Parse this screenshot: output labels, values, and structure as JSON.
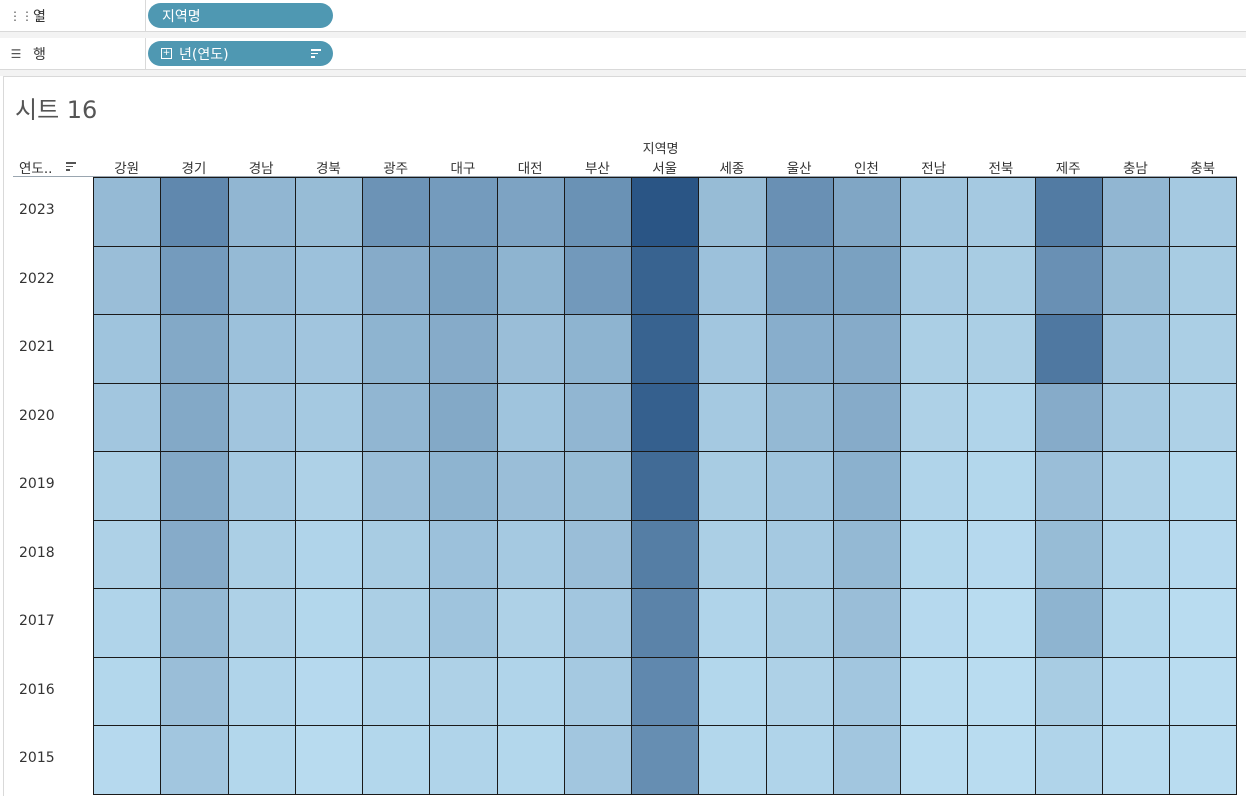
{
  "shelves": {
    "columns": {
      "icon": "iii-icon",
      "label": "열",
      "pill": "지역명"
    },
    "rows": {
      "icon": "list-icon",
      "label": "행",
      "pill": "년(연도)"
    }
  },
  "sheet": {
    "title": "시트 16",
    "column_group_label": "지역명",
    "row_header_label": "연도.."
  },
  "colors": {
    "pill": "#4f98b2",
    "low": "#b9dcf0",
    "high": "#2a5585"
  },
  "chart_data": {
    "type": "heatmap",
    "title": "시트 16",
    "xlabel": "지역명",
    "ylabel": "연도..",
    "x": [
      "강원",
      "경기",
      "경남",
      "경북",
      "광주",
      "대구",
      "대전",
      "부산",
      "서울",
      "세종",
      "울산",
      "인천",
      "전남",
      "전북",
      "제주",
      "충남",
      "충북"
    ],
    "y": [
      "2023",
      "2022",
      "2021",
      "2020",
      "2019",
      "2018",
      "2017",
      "2016",
      "2015"
    ],
    "values": [
      [
        0.25,
        0.62,
        0.28,
        0.24,
        0.54,
        0.48,
        0.42,
        0.55,
        1.0,
        0.24,
        0.56,
        0.4,
        0.18,
        0.14,
        0.72,
        0.28,
        0.14
      ],
      [
        0.22,
        0.48,
        0.25,
        0.2,
        0.36,
        0.44,
        0.3,
        0.5,
        0.9,
        0.2,
        0.46,
        0.44,
        0.14,
        0.12,
        0.56,
        0.24,
        0.12
      ],
      [
        0.18,
        0.38,
        0.2,
        0.17,
        0.3,
        0.36,
        0.22,
        0.3,
        0.9,
        0.16,
        0.34,
        0.36,
        0.1,
        0.1,
        0.74,
        0.18,
        0.1
      ],
      [
        0.16,
        0.38,
        0.17,
        0.14,
        0.28,
        0.38,
        0.18,
        0.28,
        0.92,
        0.14,
        0.26,
        0.36,
        0.08,
        0.06,
        0.36,
        0.14,
        0.08
      ],
      [
        0.1,
        0.38,
        0.14,
        0.08,
        0.22,
        0.3,
        0.22,
        0.24,
        0.84,
        0.12,
        0.18,
        0.32,
        0.06,
        0.04,
        0.22,
        0.08,
        0.04
      ],
      [
        0.08,
        0.36,
        0.1,
        0.06,
        0.12,
        0.2,
        0.14,
        0.22,
        0.7,
        0.1,
        0.14,
        0.26,
        0.04,
        0.02,
        0.24,
        0.06,
        0.02
      ],
      [
        0.06,
        0.26,
        0.08,
        0.04,
        0.1,
        0.18,
        0.08,
        0.16,
        0.66,
        0.06,
        0.12,
        0.22,
        0.02,
        0.0,
        0.3,
        0.04,
        0.0
      ],
      [
        0.04,
        0.22,
        0.06,
        0.02,
        0.06,
        0.08,
        0.06,
        0.14,
        0.62,
        0.04,
        0.08,
        0.16,
        0.01,
        0.0,
        0.12,
        0.02,
        0.0
      ],
      [
        0.02,
        0.16,
        0.04,
        0.01,
        0.04,
        0.06,
        0.04,
        0.16,
        0.58,
        0.04,
        0.06,
        0.16,
        0.0,
        0.0,
        0.06,
        0.01,
        0.0
      ]
    ],
    "legend": "none",
    "grid": true
  }
}
